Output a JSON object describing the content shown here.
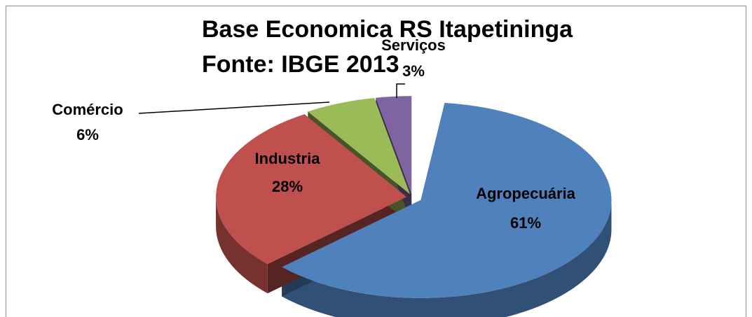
{
  "chart_data": {
    "type": "pie",
    "title": "Base Economica RS Itapetininga",
    "subtitle": "Fonte: IBGE 2013",
    "categories": [
      "Agropecuária",
      "Industria",
      "Comércio",
      "Serviços"
    ],
    "values": [
      61,
      28,
      6,
      3
    ],
    "value_labels": [
      "61%",
      "28%",
      "6%",
      "3%"
    ],
    "colors": [
      "#4f81bd",
      "#c0504d",
      "#9bbb59",
      "#8064a2"
    ]
  }
}
